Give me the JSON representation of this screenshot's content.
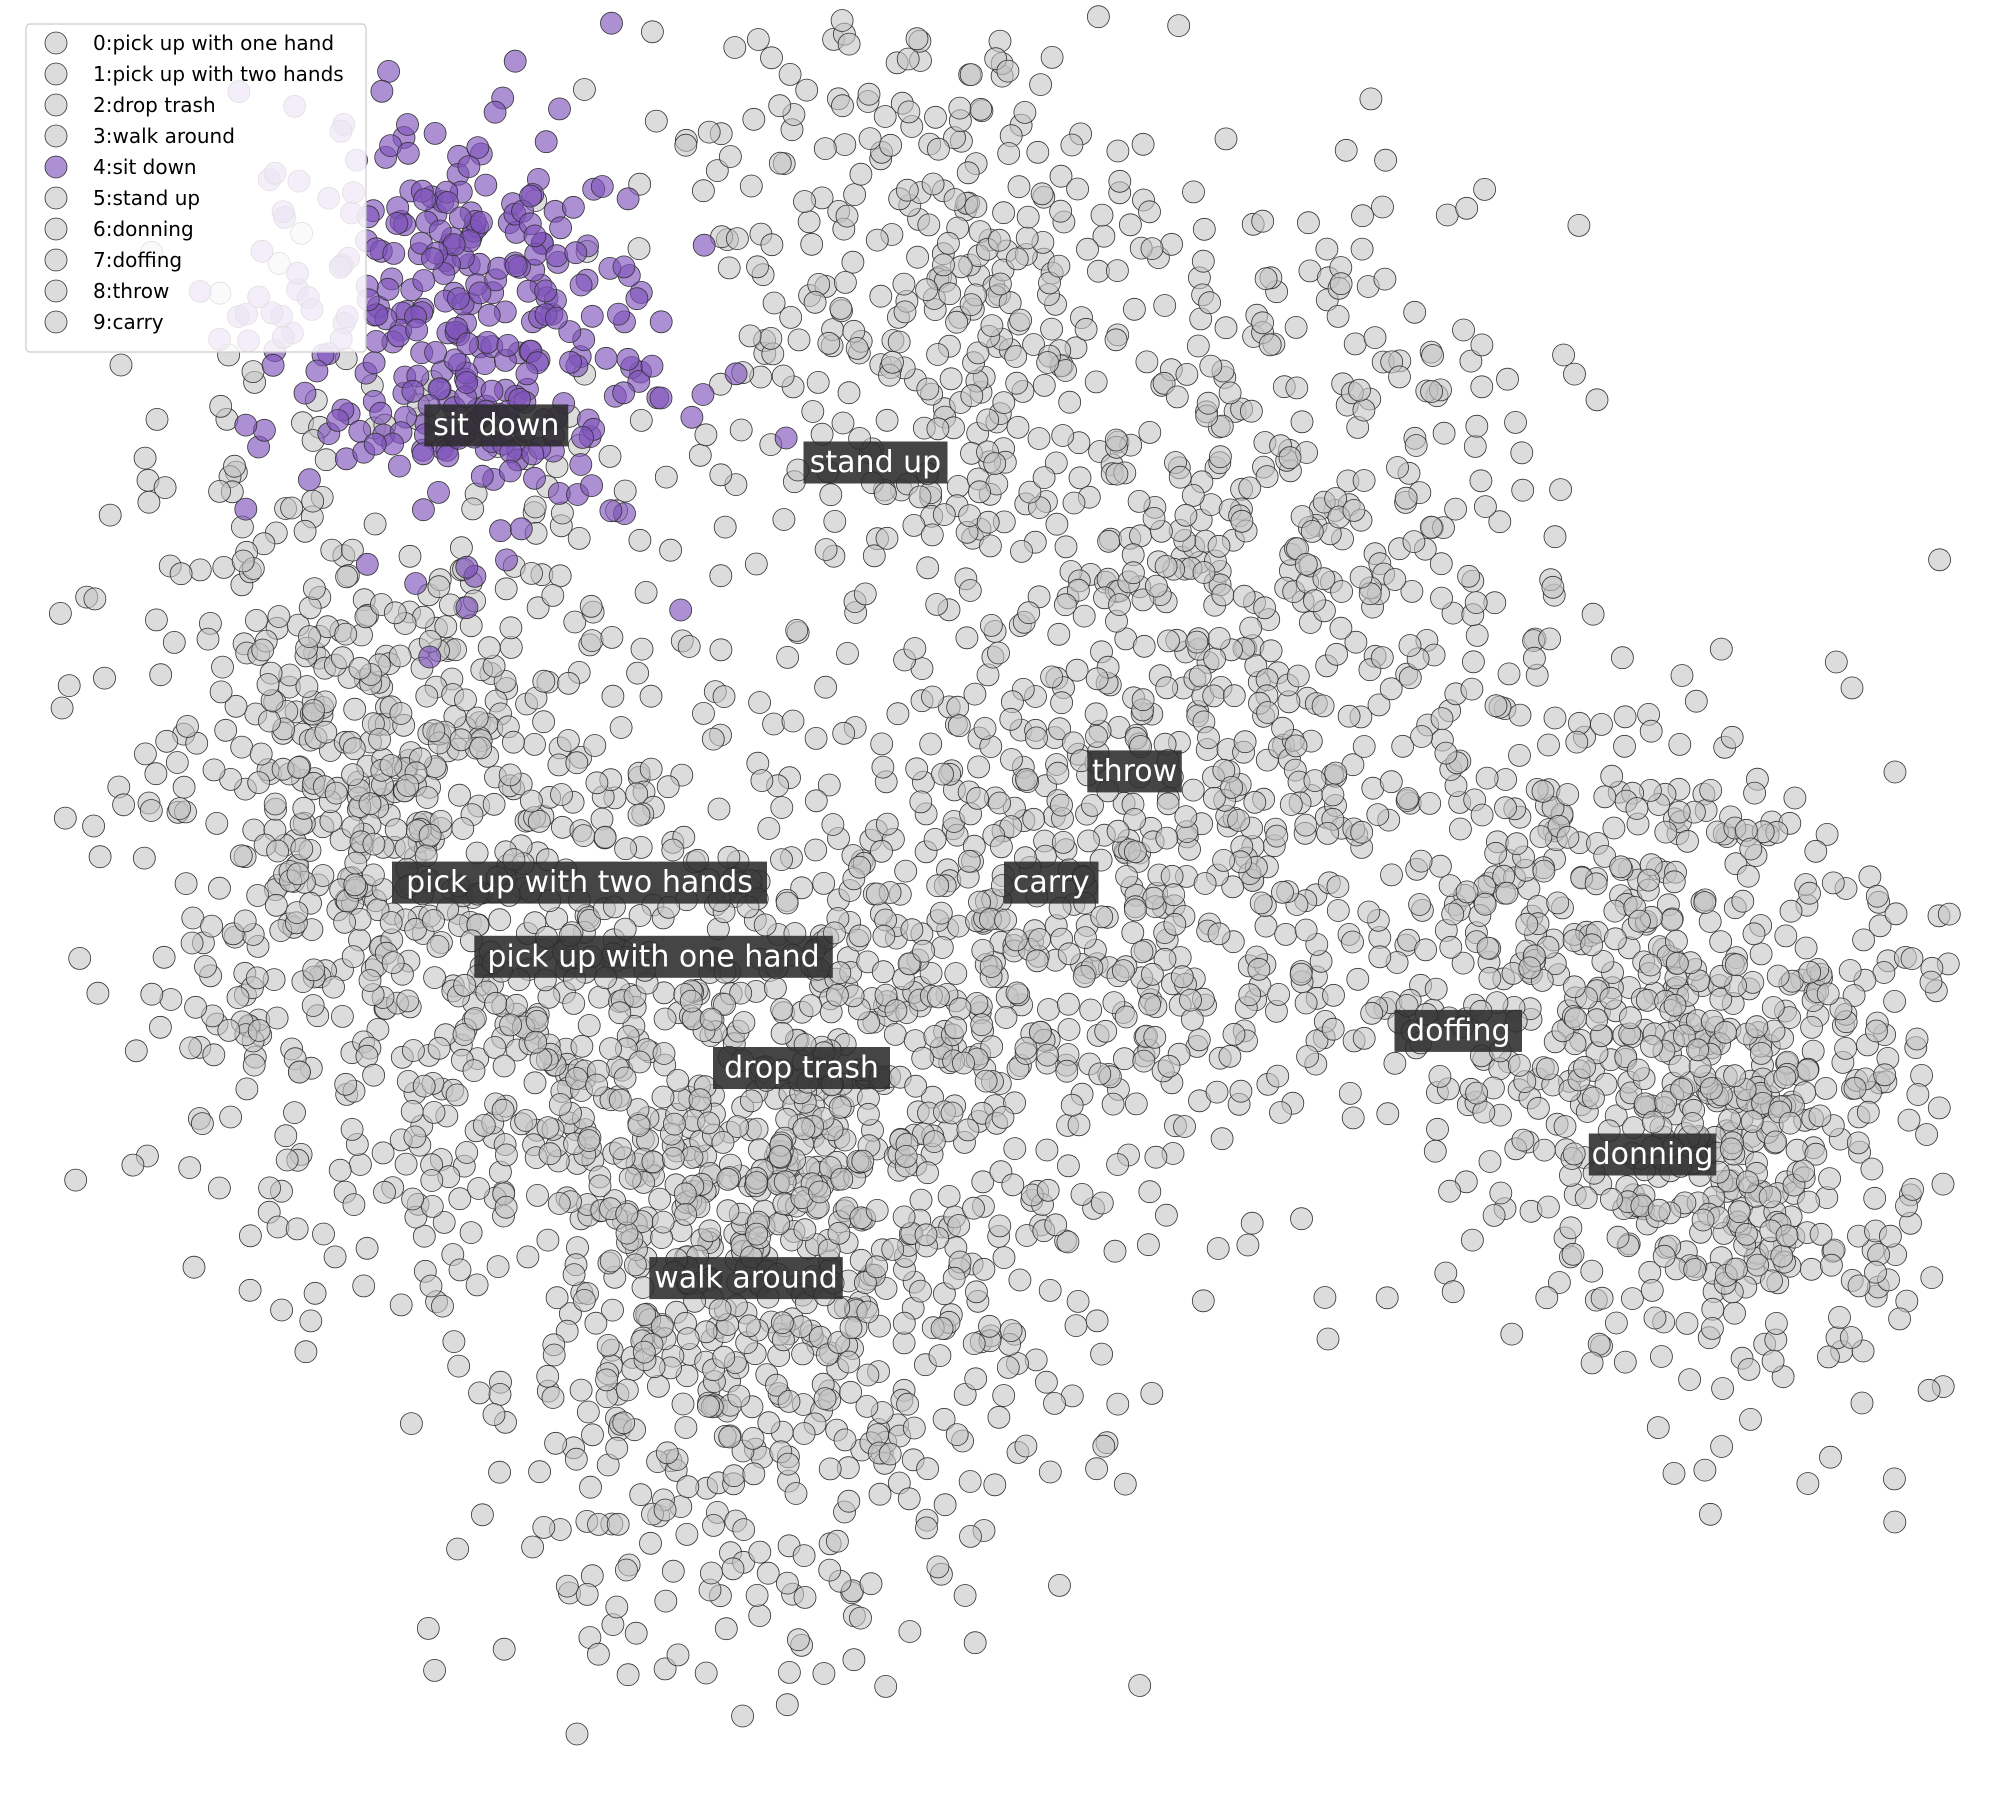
{
  "chart_data": {
    "type": "scatter",
    "title": "",
    "xlabel": "",
    "ylabel": "",
    "axes_visible": false,
    "grid": false,
    "legend_position": "top-left",
    "highlight_class": 4,
    "colors": {
      "highlight": "#8054bc",
      "other": "#c4c4c4",
      "edge": "#333333",
      "label_box": "#2b2b2b",
      "label_text": "#ffffff"
    },
    "classes": [
      {
        "id": 0,
        "name": "pick up with one hand",
        "legend": "0:pick up with one hand",
        "highlighted": false,
        "centroid": [
          3.2,
          4.4
        ],
        "spread": [
          1.7,
          1.3
        ],
        "count": 420
      },
      {
        "id": 1,
        "name": "pick up with two hands",
        "legend": "1:pick up with two hands",
        "highlighted": false,
        "centroid": [
          2.0,
          6.2
        ],
        "spread": [
          1.5,
          1.4
        ],
        "count": 420
      },
      {
        "id": 2,
        "name": "drop trash",
        "legend": "2:drop trash",
        "highlighted": false,
        "centroid": [
          6.6,
          3.4
        ],
        "spread": [
          1.4,
          1.2
        ],
        "count": 360
      },
      {
        "id": 3,
        "name": "walk around",
        "legend": "3:walk around",
        "highlighted": false,
        "centroid": [
          6.4,
          1.3
        ],
        "spread": [
          1.7,
          1.3
        ],
        "count": 500
      },
      {
        "id": 4,
        "name": "sit down",
        "legend": "4:sit down",
        "highlighted": true,
        "centroid": [
          3.0,
          9.6
        ],
        "spread": [
          1.1,
          0.9
        ],
        "count": 330
      },
      {
        "id": 5,
        "name": "stand up",
        "legend": "5:stand up",
        "highlighted": false,
        "centroid": [
          8.0,
          10.0
        ],
        "spread": [
          1.5,
          1.2
        ],
        "count": 330
      },
      {
        "id": 6,
        "name": "donning",
        "legend": "6:donning",
        "highlighted": false,
        "centroid": [
          17.0,
          3.0
        ],
        "spread": [
          1.1,
          1.1
        ],
        "count": 420
      },
      {
        "id": 7,
        "name": "doffing",
        "legend": "7:doffing",
        "highlighted": false,
        "centroid": [
          15.1,
          4.5
        ],
        "spread": [
          1.5,
          1.0
        ],
        "count": 380
      },
      {
        "id": 8,
        "name": "throw",
        "legend": "8:throw",
        "highlighted": false,
        "centroid": [
          11.6,
          7.4
        ],
        "spread": [
          1.8,
          1.5
        ],
        "count": 520
      },
      {
        "id": 9,
        "name": "carry",
        "legend": "9:carry",
        "highlighted": false,
        "centroid": [
          9.6,
          4.6
        ],
        "spread": [
          1.5,
          1.3
        ],
        "count": 400
      }
    ],
    "annotations": [
      {
        "class_id": 4,
        "text": "sit down",
        "x": 3.5,
        "y": 8.8
      },
      {
        "class_id": 5,
        "text": "stand up",
        "x": 7.6,
        "y": 8.5
      },
      {
        "class_id": 8,
        "text": "throw",
        "x": 10.4,
        "y": 6.0
      },
      {
        "class_id": 1,
        "text": "pick up with two hands",
        "x": 4.4,
        "y": 5.1
      },
      {
        "class_id": 9,
        "text": "carry",
        "x": 9.5,
        "y": 5.1
      },
      {
        "class_id": 0,
        "text": "pick up with one hand",
        "x": 5.2,
        "y": 4.5
      },
      {
        "class_id": 7,
        "text": "doffing",
        "x": 13.9,
        "y": 3.9
      },
      {
        "class_id": 2,
        "text": "drop trash",
        "x": 6.8,
        "y": 3.6
      },
      {
        "class_id": 6,
        "text": "donning",
        "x": 16.0,
        "y": 2.9
      },
      {
        "class_id": 3,
        "text": "walk around",
        "x": 6.2,
        "y": 1.9
      }
    ],
    "xlim": [
      -1,
      19
    ],
    "ylim": [
      -2,
      12
    ]
  }
}
